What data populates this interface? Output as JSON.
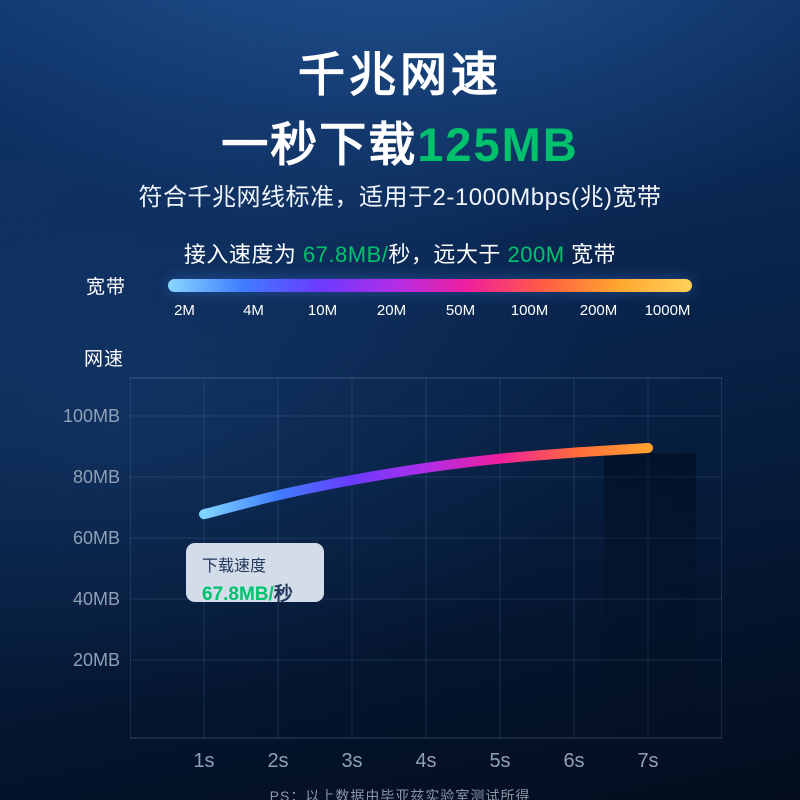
{
  "colors": {
    "green": "#00c26d"
  },
  "header": {
    "title": "千兆网速",
    "subtitle": [
      {
        "text": "一秒下载",
        "style": "white"
      },
      {
        "text": "125MB",
        "style": "green"
      }
    ],
    "description": "符合千兆网线标准，适用于2-1000Mbps(兆)宽带",
    "speed_line": [
      {
        "text": "接入速度为 ",
        "style": "white"
      },
      {
        "text": "67.8MB/",
        "style": "green"
      },
      {
        "text": "秒，远大于 ",
        "style": "white"
      },
      {
        "text": "200M",
        "style": "green"
      },
      {
        "text": " 宽带",
        "style": "white"
      }
    ]
  },
  "broadband": {
    "label": "宽带",
    "ticks": [
      "2M",
      "4M",
      "10M",
      "20M",
      "50M",
      "100M",
      "200M",
      "1000M"
    ],
    "bar_gradient": [
      "#8ad6ff",
      "#3f7dff",
      "#6a3bff",
      "#b02de8",
      "#ef1f9c",
      "#ff5b45",
      "#ffa62e",
      "#ffd25a"
    ]
  },
  "chart_data": {
    "type": "line",
    "ylabel": "网速",
    "xlabel": "",
    "x_labels": [
      "1s",
      "2s",
      "3s",
      "4s",
      "5s",
      "6s",
      "7s"
    ],
    "y_tick_labels": [
      "100MB",
      "80MB",
      "60MB",
      "40MB",
      "20MB"
    ],
    "y_axis": {
      "min": 20,
      "max": 100,
      "step": 20
    },
    "series": [
      {
        "name": "下载速度",
        "values": [
          67.8,
          74,
          79,
          83,
          86,
          88,
          89.5
        ]
      }
    ],
    "gradient_stops": [
      "#7fd4ff",
      "#3f7dff",
      "#6a3bff",
      "#b02de8",
      "#ef1f9c",
      "#ff6a3d",
      "#ffa12e"
    ],
    "grid": true,
    "legend": "none"
  },
  "tooltip": {
    "label": "下载速度",
    "value_green": "67.8MB/",
    "value_dark": "秒"
  },
  "footer": "PS：以上数据由毕亚兹实验室测试所得"
}
